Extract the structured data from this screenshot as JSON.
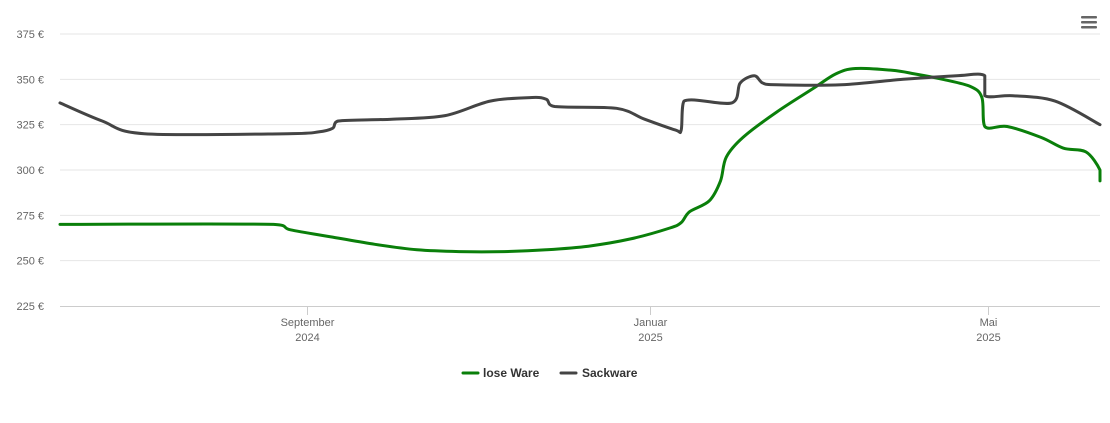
{
  "chart_data": {
    "type": "line",
    "title": "",
    "xlabel": "",
    "ylabel": "",
    "ylim": [
      225,
      375
    ],
    "y_ticks": [
      225,
      250,
      275,
      300,
      325,
      350,
      375
    ],
    "y_tick_suffix": " €",
    "x_range": [
      "2024-06-05",
      "2025-06-10"
    ],
    "x_ticks": [
      {
        "date": "2024-09-01",
        "month": "September",
        "year": "2024"
      },
      {
        "date": "2025-01-01",
        "month": "Januar",
        "year": "2025"
      },
      {
        "date": "2025-05-01",
        "month": "Mai",
        "year": "2025"
      }
    ],
    "grid": true,
    "legend_position": "bottom-center",
    "series": [
      {
        "name": "lose Ware",
        "color": "#0a7f0a",
        "points": [
          [
            "2024-06-05",
            270
          ],
          [
            "2024-08-20",
            270
          ],
          [
            "2024-08-26",
            267
          ],
          [
            "2024-09-10",
            263
          ],
          [
            "2024-09-25",
            259
          ],
          [
            "2024-10-10",
            256
          ],
          [
            "2024-10-25",
            255
          ],
          [
            "2024-11-10",
            255
          ],
          [
            "2024-11-25",
            256
          ],
          [
            "2024-12-10",
            258
          ],
          [
            "2024-12-25",
            262
          ],
          [
            "2025-01-08",
            268
          ],
          [
            "2025-01-12",
            271
          ],
          [
            "2025-01-15",
            277
          ],
          [
            "2025-01-22",
            283
          ],
          [
            "2025-01-26",
            294
          ],
          [
            "2025-01-28",
            307
          ],
          [
            "2025-02-03",
            318
          ],
          [
            "2025-02-15",
            332
          ],
          [
            "2025-02-28",
            345
          ],
          [
            "2025-03-08",
            353
          ],
          [
            "2025-03-15",
            356
          ],
          [
            "2025-03-28",
            355
          ],
          [
            "2025-04-05",
            353
          ],
          [
            "2025-04-15",
            350
          ],
          [
            "2025-04-25",
            346
          ],
          [
            "2025-04-29",
            340
          ],
          [
            "2025-04-30",
            324
          ],
          [
            "2025-05-08",
            324
          ],
          [
            "2025-05-20",
            318
          ],
          [
            "2025-05-28",
            312
          ],
          [
            "2025-06-05",
            310
          ],
          [
            "2025-06-10",
            300
          ],
          [
            "2025-06-10",
            294
          ]
        ]
      },
      {
        "name": "Sackware",
        "color": "#444444",
        "points": [
          [
            "2024-06-05",
            337
          ],
          [
            "2024-06-20",
            327
          ],
          [
            "2024-07-05",
            320
          ],
          [
            "2024-08-25",
            320
          ],
          [
            "2024-09-05",
            321
          ],
          [
            "2024-09-10",
            323
          ],
          [
            "2024-09-12",
            327
          ],
          [
            "2024-10-01",
            328
          ],
          [
            "2024-10-20",
            330
          ],
          [
            "2024-11-05",
            338
          ],
          [
            "2024-11-20",
            340
          ],
          [
            "2024-11-25",
            339
          ],
          [
            "2024-11-28",
            335
          ],
          [
            "2024-12-20",
            334
          ],
          [
            "2024-12-30",
            328
          ],
          [
            "2025-01-10",
            322
          ],
          [
            "2025-01-12",
            322
          ],
          [
            "2025-01-13",
            338
          ],
          [
            "2025-01-30",
            337
          ],
          [
            "2025-02-02",
            348
          ],
          [
            "2025-02-07",
            352
          ],
          [
            "2025-02-10",
            348
          ],
          [
            "2025-02-15",
            347
          ],
          [
            "2025-03-10",
            347
          ],
          [
            "2025-04-01",
            350
          ],
          [
            "2025-04-20",
            352
          ],
          [
            "2025-04-30",
            352
          ],
          [
            "2025-04-30",
            341
          ],
          [
            "2025-05-10",
            341
          ],
          [
            "2025-05-25",
            338
          ],
          [
            "2025-06-10",
            325
          ]
        ]
      }
    ]
  }
}
